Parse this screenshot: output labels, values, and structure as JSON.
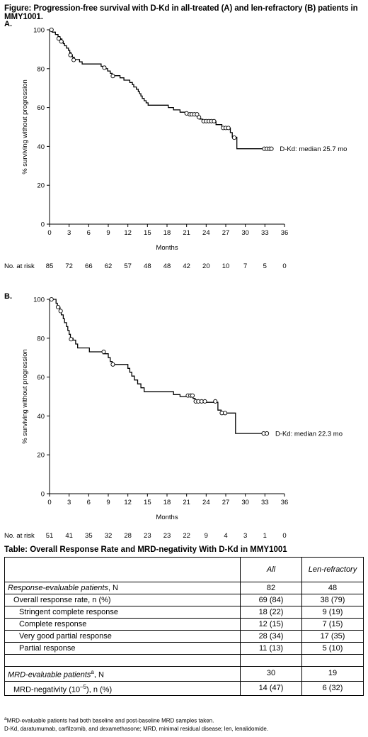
{
  "figure_title": "Figure: Progression-free survival with D-Kd in all-treated (A) and len-refractory (B) patients in MMY1001.",
  "chart_data": [
    {
      "type": "line",
      "panel": "A.",
      "ylabel": "% surviving without progression",
      "xlabel": "Months",
      "xlim": [
        0,
        36
      ],
      "ylim": [
        0,
        100
      ],
      "xticks": [
        0,
        3,
        6,
        9,
        12,
        15,
        18,
        21,
        24,
        27,
        30,
        33,
        36
      ],
      "yticks": [
        0,
        20,
        40,
        60,
        80,
        100
      ],
      "series": [
        {
          "name": "D-Kd: median 25.7 mo",
          "step_points": [
            [
              0,
              100
            ],
            [
              0.4,
              98.8
            ],
            [
              0.9,
              97.6
            ],
            [
              1.3,
              96.5
            ],
            [
              1.6,
              95.3
            ],
            [
              1.9,
              94.1
            ],
            [
              2.1,
              92.9
            ],
            [
              2.3,
              91.8
            ],
            [
              2.6,
              90.6
            ],
            [
              2.9,
              89.4
            ],
            [
              3.1,
              88.2
            ],
            [
              3.3,
              87.1
            ],
            [
              3.5,
              85.9
            ],
            [
              3.8,
              84.7
            ],
            [
              4.6,
              83.5
            ],
            [
              5.0,
              82.4
            ],
            [
              7.9,
              81.2
            ],
            [
              8.6,
              80
            ],
            [
              8.9,
              78.8
            ],
            [
              9.3,
              77.6
            ],
            [
              9.6,
              76.4
            ],
            [
              10.8,
              75.3
            ],
            [
              11.4,
              74.1
            ],
            [
              12.3,
              72.9
            ],
            [
              12.7,
              71.8
            ],
            [
              12.9,
              70.6
            ],
            [
              13.3,
              69.4
            ],
            [
              13.6,
              68.2
            ],
            [
              13.8,
              67.1
            ],
            [
              14.0,
              65.9
            ],
            [
              14.2,
              64.7
            ],
            [
              14.5,
              63.5
            ],
            [
              14.8,
              62.4
            ],
            [
              15.1,
              61.2
            ],
            [
              18.2,
              60
            ],
            [
              19.0,
              58.8
            ],
            [
              20.0,
              57.6
            ],
            [
              20.8,
              56.5
            ],
            [
              22.6,
              55.3
            ],
            [
              23.0,
              54.1
            ],
            [
              23.4,
              52.9
            ],
            [
              25.5,
              51.2
            ],
            [
              26.4,
              49.4
            ],
            [
              27.7,
              47.1
            ],
            [
              28.0,
              44.7
            ],
            [
              28.7,
              38.8
            ],
            [
              34.2,
              38.8
            ]
          ],
          "censor_points": [
            [
              0.3,
              100
            ],
            [
              1.4,
              95.5
            ],
            [
              1.8,
              94
            ],
            [
              3.2,
              87
            ],
            [
              3.7,
              84.5
            ],
            [
              8.4,
              80.5
            ],
            [
              9.7,
              76.2
            ],
            [
              21.0,
              57
            ],
            [
              21.5,
              56.5
            ],
            [
              21.8,
              56.5
            ],
            [
              22.2,
              56.5
            ],
            [
              22.6,
              56.5
            ],
            [
              22.9,
              55
            ],
            [
              23.6,
              53
            ],
            [
              24.0,
              53
            ],
            [
              24.4,
              53
            ],
            [
              24.8,
              53
            ],
            [
              25.2,
              53
            ],
            [
              26.6,
              49.5
            ],
            [
              27.0,
              49.5
            ],
            [
              27.4,
              49.5
            ],
            [
              28.3,
              44.5
            ],
            [
              32.9,
              38.8
            ],
            [
              33.3,
              38.8
            ],
            [
              33.7,
              38.8
            ],
            [
              34.0,
              38.8
            ]
          ]
        }
      ],
      "at_risk_label": "No. at risk",
      "at_risk": [
        "85",
        "72",
        "66",
        "62",
        "57",
        "48",
        "48",
        "42",
        "20",
        "10",
        "7",
        "5",
        "0"
      ]
    },
    {
      "type": "line",
      "panel": "B.",
      "ylabel": "% surviving without progression",
      "xlabel": "Months",
      "xlim": [
        0,
        36
      ],
      "ylim": [
        0,
        100
      ],
      "xticks": [
        0,
        3,
        6,
        9,
        12,
        15,
        18,
        21,
        24,
        27,
        30,
        33,
        36
      ],
      "yticks": [
        0,
        20,
        40,
        60,
        80,
        100
      ],
      "series": [
        {
          "name": "D-Kd: median 22.3 mo",
          "step_points": [
            [
              0,
              100
            ],
            [
              1.0,
              98
            ],
            [
              1.2,
              96
            ],
            [
              1.6,
              94
            ],
            [
              1.8,
              92
            ],
            [
              2.1,
              90
            ],
            [
              2.3,
              88
            ],
            [
              2.6,
              86
            ],
            [
              2.8,
              84
            ],
            [
              3.0,
              82
            ],
            [
              3.2,
              80
            ],
            [
              3.6,
              79
            ],
            [
              4.0,
              77
            ],
            [
              4.3,
              75
            ],
            [
              6.1,
              73
            ],
            [
              8.2,
              72
            ],
            [
              9.0,
              70
            ],
            [
              9.3,
              68
            ],
            [
              9.6,
              66.5
            ],
            [
              12.0,
              64.5
            ],
            [
              12.3,
              62.5
            ],
            [
              12.6,
              60.5
            ],
            [
              13.0,
              58.5
            ],
            [
              13.5,
              56.5
            ],
            [
              14.0,
              54.5
            ],
            [
              14.5,
              52.5
            ],
            [
              19.0,
              51
            ],
            [
              20.0,
              50
            ],
            [
              22.0,
              49
            ],
            [
              22.3,
              47
            ],
            [
              25.8,
              43
            ],
            [
              26.3,
              41.5
            ],
            [
              28.5,
              31
            ],
            [
              33.5,
              31
            ]
          ],
          "censor_points": [
            [
              0.3,
              100
            ],
            [
              1.3,
              96
            ],
            [
              1.7,
              94
            ],
            [
              3.3,
              79.5
            ],
            [
              8.3,
              73
            ],
            [
              9.7,
              66.5
            ],
            [
              21.2,
              50.5
            ],
            [
              21.6,
              50.5
            ],
            [
              21.9,
              50.5
            ],
            [
              22.4,
              47.5
            ],
            [
              22.8,
              47.5
            ],
            [
              23.3,
              47.5
            ],
            [
              23.8,
              47.5
            ],
            [
              25.4,
              47.5
            ],
            [
              26.4,
              41.5
            ],
            [
              26.9,
              41.5
            ],
            [
              32.8,
              31
            ],
            [
              33.3,
              31
            ]
          ]
        }
      ],
      "at_risk_label": "No. at risk",
      "at_risk": [
        "51",
        "41",
        "35",
        "32",
        "28",
        "23",
        "23",
        "22",
        "9",
        "4",
        "3",
        "1",
        "0"
      ]
    }
  ],
  "table": {
    "title": "Table: Overall Response Rate and MRD-negativity With D-Kd in MMY1001",
    "col_all": "All",
    "col_len": "Len-refractory",
    "rows": [
      {
        "label": "Response-evaluable patients",
        "suffix": ", N",
        "style": "italic",
        "all": "82",
        "len": "48"
      },
      {
        "label": "Overall response rate, n (%)",
        "style": "ind1",
        "all": "69 (84)",
        "len": "38 (79)"
      },
      {
        "label": "Stringent complete response",
        "style": "ind2",
        "all": "18 (22)",
        "len": "9 (19)"
      },
      {
        "label": "Complete response",
        "style": "ind2",
        "all": "12 (15)",
        "len": "7 (15)"
      },
      {
        "label": "Very good partial response",
        "style": "ind2",
        "all": "28 (34)",
        "len": "17 (35)"
      },
      {
        "label": "Partial response",
        "style": "ind2",
        "all": "11 (13)",
        "len": "5 (10)"
      },
      {
        "label": "",
        "style": "blank",
        "all": "",
        "len": ""
      },
      {
        "label": "MRD-evaluable patients",
        "sup": "a",
        "suffix": ", N",
        "style": "italic",
        "all": "30",
        "len": "19"
      },
      {
        "label": "MRD-negativity (10",
        "sup": "–5",
        "suffix": "), n (%)",
        "style": "ind1",
        "all": "14 (47)",
        "len": "6 (32)"
      }
    ],
    "footnote_1_sup": "a",
    "footnote_1": "MRD-evaluable patients had both baseline and post-baseline MRD samples taken.",
    "footnote_2": "D-Kd, daratumumab, carfilzomib, and dexamethasone; MRD, minimal residual disease; len, lenalidomide."
  }
}
